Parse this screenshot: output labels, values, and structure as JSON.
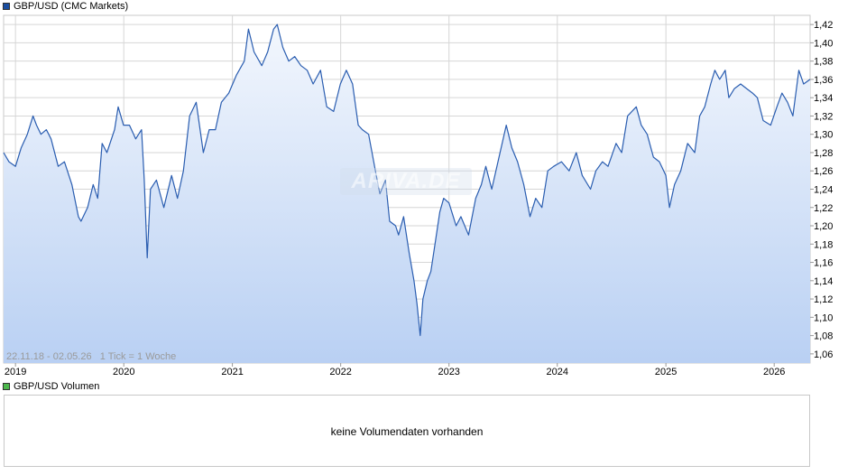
{
  "legend_main": {
    "label": "GBP/USD (CMC Markets)",
    "color": "#1a4ea0"
  },
  "legend_volume": {
    "label": "GBP/USD Volumen",
    "color": "#4cb84c"
  },
  "range_info": "22.11.18 - 02.05.26   1 Tick = 1 Woche",
  "watermark": "ARIVA.DE",
  "volume_message": "keine Volumendaten vorhanden",
  "colors": {
    "line": "#2a5db0",
    "fill_top": "#f3f7fd",
    "fill_bottom": "#b9d0f3",
    "grid": "#d6d6d6"
  },
  "chart_data": {
    "type": "area",
    "title": "GBP/USD (CMC Markets)",
    "ylim": [
      1.05,
      1.43
    ],
    "xlim": [
      "2018-11-22",
      "2026-05-02"
    ],
    "y_ticks": [
      "1,06",
      "1,08",
      "1,10",
      "1,12",
      "1,14",
      "1,16",
      "1,18",
      "1,20",
      "1,22",
      "1,24",
      "1,26",
      "1,28",
      "1,30",
      "1,32",
      "1,34",
      "1,36",
      "1,38",
      "1,40",
      "1,42"
    ],
    "x_ticks": [
      "2019",
      "2020",
      "2021",
      "2022",
      "2023",
      "2024",
      "2025",
      "2026"
    ],
    "grid": true,
    "y_axis_side": "right",
    "series": [
      {
        "x": [
          "2018-11-22",
          "2018-12-10",
          "2019-01-01",
          "2019-01-20",
          "2019-02-10",
          "2019-03-01",
          "2019-03-13",
          "2019-03-28",
          "2019-04-15",
          "2019-05-01",
          "2019-05-25",
          "2019-06-15",
          "2019-07-10",
          "2019-08-01",
          "2019-08-10",
          "2019-09-01",
          "2019-09-20",
          "2019-10-05",
          "2019-10-20",
          "2019-11-05",
          "2019-12-01",
          "2019-12-13",
          "2019-12-31",
          "2020-01-20",
          "2020-02-10",
          "2020-03-01",
          "2020-03-10",
          "2020-03-20",
          "2020-03-31",
          "2020-04-20",
          "2020-05-15",
          "2020-06-10",
          "2020-06-30",
          "2020-07-20",
          "2020-08-10",
          "2020-09-01",
          "2020-09-25",
          "2020-10-15",
          "2020-11-05",
          "2020-11-25",
          "2020-12-20",
          "2021-01-15",
          "2021-02-10",
          "2021-02-24",
          "2021-03-15",
          "2021-04-10",
          "2021-04-30",
          "2021-05-20",
          "2021-06-01",
          "2021-06-20",
          "2021-07-10",
          "2021-07-30",
          "2021-08-20",
          "2021-09-10",
          "2021-09-30",
          "2021-10-25",
          "2021-11-15",
          "2021-12-08",
          "2021-12-31",
          "2022-01-20",
          "2022-02-10",
          "2022-03-01",
          "2022-03-15",
          "2022-04-05",
          "2022-05-01",
          "2022-05-13",
          "2022-06-01",
          "2022-06-15",
          "2022-07-05",
          "2022-07-15",
          "2022-08-01",
          "2022-08-20",
          "2022-09-05",
          "2022-09-15",
          "2022-09-26",
          "2022-10-05",
          "2022-10-20",
          "2022-11-01",
          "2022-11-15",
          "2022-12-01",
          "2022-12-14",
          "2023-01-01",
          "2023-01-25",
          "2023-02-10",
          "2023-03-08",
          "2023-04-01",
          "2023-04-20",
          "2023-05-05",
          "2023-05-25",
          "2023-06-15",
          "2023-07-13",
          "2023-08-01",
          "2023-08-20",
          "2023-09-10",
          "2023-10-01",
          "2023-10-20",
          "2023-11-10",
          "2023-11-30",
          "2023-12-20",
          "2024-01-15",
          "2024-02-10",
          "2024-03-05",
          "2024-03-25",
          "2024-04-22",
          "2024-05-10",
          "2024-06-01",
          "2024-06-20",
          "2024-07-17",
          "2024-08-05",
          "2024-08-25",
          "2024-09-23",
          "2024-10-10",
          "2024-10-30",
          "2024-11-20",
          "2024-12-10",
          "2025-01-01",
          "2025-01-13",
          "2025-01-30",
          "2025-02-20",
          "2025-03-15",
          "2025-04-08",
          "2025-04-25",
          "2025-05-12",
          "2025-06-01",
          "2025-06-15",
          "2025-07-01",
          "2025-07-20",
          "2025-08-01",
          "2025-08-20",
          "2025-09-10",
          "2025-09-30",
          "2025-10-20",
          "2025-11-05",
          "2025-11-25",
          "2025-12-20",
          "2026-01-10",
          "2026-01-27",
          "2026-02-15",
          "2026-03-05",
          "2026-03-25",
          "2026-04-10",
          "2026-05-02"
        ],
        "values": [
          1.28,
          1.27,
          1.265,
          1.285,
          1.3,
          1.32,
          1.31,
          1.3,
          1.305,
          1.295,
          1.265,
          1.27,
          1.245,
          1.21,
          1.205,
          1.22,
          1.245,
          1.23,
          1.29,
          1.28,
          1.305,
          1.33,
          1.31,
          1.31,
          1.295,
          1.305,
          1.25,
          1.165,
          1.24,
          1.25,
          1.22,
          1.255,
          1.23,
          1.26,
          1.32,
          1.335,
          1.28,
          1.305,
          1.305,
          1.335,
          1.345,
          1.365,
          1.38,
          1.415,
          1.39,
          1.375,
          1.39,
          1.415,
          1.42,
          1.395,
          1.38,
          1.385,
          1.375,
          1.37,
          1.355,
          1.37,
          1.33,
          1.325,
          1.355,
          1.37,
          1.355,
          1.31,
          1.305,
          1.3,
          1.255,
          1.235,
          1.25,
          1.205,
          1.2,
          1.19,
          1.21,
          1.17,
          1.14,
          1.115,
          1.08,
          1.12,
          1.14,
          1.15,
          1.18,
          1.215,
          1.23,
          1.225,
          1.2,
          1.21,
          1.19,
          1.23,
          1.245,
          1.265,
          1.24,
          1.27,
          1.31,
          1.285,
          1.27,
          1.245,
          1.21,
          1.23,
          1.22,
          1.26,
          1.265,
          1.27,
          1.26,
          1.28,
          1.255,
          1.24,
          1.26,
          1.27,
          1.265,
          1.29,
          1.28,
          1.32,
          1.33,
          1.31,
          1.3,
          1.275,
          1.27,
          1.255,
          1.22,
          1.245,
          1.26,
          1.29,
          1.28,
          1.32,
          1.33,
          1.355,
          1.37,
          1.36,
          1.37,
          1.34,
          1.35,
          1.355,
          1.35,
          1.345,
          1.34,
          1.315,
          1.31,
          1.33,
          1.345,
          1.335,
          1.32,
          1.37,
          1.355,
          1.36
        ]
      }
    ]
  }
}
